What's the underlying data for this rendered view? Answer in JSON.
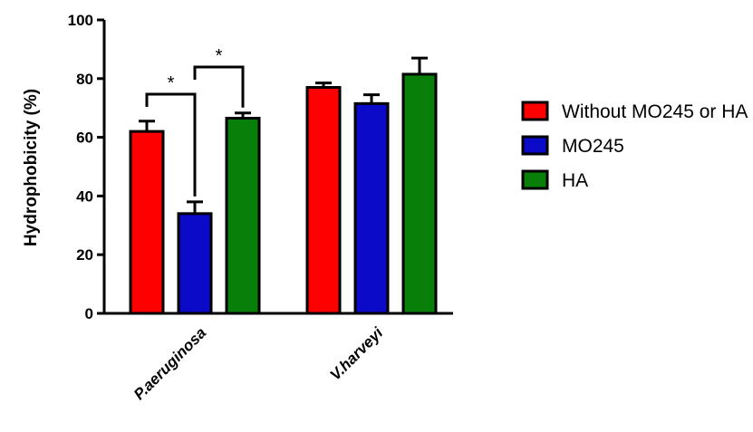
{
  "chart_data": {
    "type": "bar",
    "categories": [
      "P.aeruginosa",
      "V.harveyi"
    ],
    "series": [
      {
        "name": "Without MO245 or HA",
        "color": "#ff0000",
        "values": [
          62,
          77
        ],
        "errors": [
          3.5,
          1.5
        ]
      },
      {
        "name": "MO245",
        "color": "#0a0ac8",
        "values": [
          34,
          71.5
        ],
        "errors": [
          4,
          3
        ]
      },
      {
        "name": "HA",
        "color": "#087f08",
        "values": [
          66.5,
          81.5
        ],
        "errors": [
          1.8,
          5.5
        ]
      }
    ],
    "ylabel": "Hydrophobicity (%)",
    "xlabel": "",
    "ylim": [
      0,
      100
    ],
    "yticks": [
      0,
      20,
      40,
      60,
      80,
      100
    ],
    "grid": false,
    "legend_position": "right",
    "significance": [
      {
        "category": "P.aeruginosa",
        "between": [
          "Without MO245 or HA",
          "MO245"
        ],
        "label": "*"
      },
      {
        "category": "P.aeruginosa",
        "between": [
          "MO245",
          "HA"
        ],
        "label": "*"
      }
    ]
  }
}
